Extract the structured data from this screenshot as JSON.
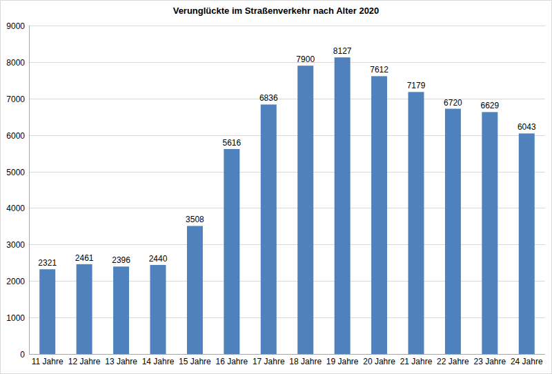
{
  "chart_data": {
    "type": "bar",
    "title": "Verunglückte im Straßenverkehr nach Alter 2020",
    "categories": [
      "11 Jahre",
      "12 Jahre",
      "13 Jahre",
      "14 Jahre",
      "15 Jahre",
      "16 Jahre",
      "17 Jahre",
      "18 Jahre",
      "19 Jahre",
      "20 Jahre",
      "21 Jahre",
      "22 Jahre",
      "23 Jahre",
      "24 Jahre"
    ],
    "values": [
      2321,
      2461,
      2396,
      2440,
      3508,
      5616,
      6836,
      7900,
      8127,
      7612,
      7179,
      6720,
      6629,
      6043
    ],
    "color": "#4f81bd",
    "ylim": [
      0,
      9000
    ],
    "yticks": [
      0,
      1000,
      2000,
      3000,
      4000,
      5000,
      6000,
      7000,
      8000,
      9000
    ],
    "grid": true,
    "data_labels": true
  }
}
